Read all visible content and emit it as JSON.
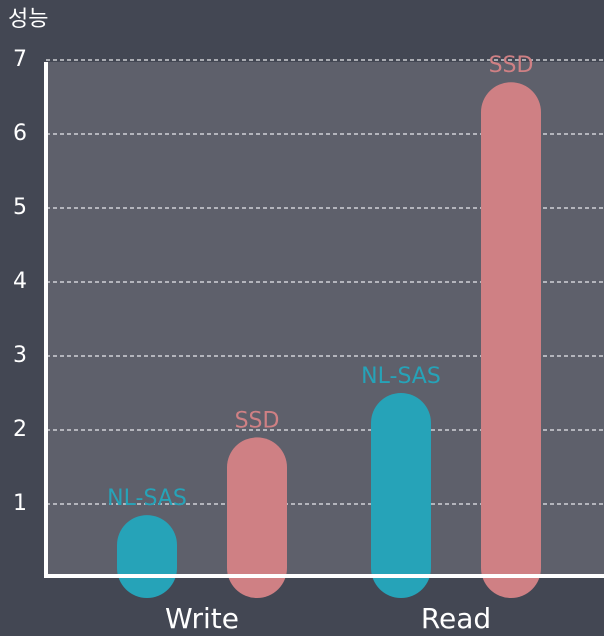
{
  "chart_data": {
    "type": "bar",
    "y_label": "성능",
    "categories": [
      "Write",
      "Read"
    ],
    "series": [
      {
        "name": "NL-SAS",
        "color": "#26a3b8",
        "values": [
          0.85,
          2.5
        ]
      },
      {
        "name": "SSD",
        "color": "#cf8084",
        "values": [
          1.9,
          6.7
        ]
      }
    ],
    "ylim": [
      0,
      7
    ],
    "yticks": [
      1,
      2,
      3,
      4,
      5,
      6,
      7
    ],
    "grid": true
  }
}
